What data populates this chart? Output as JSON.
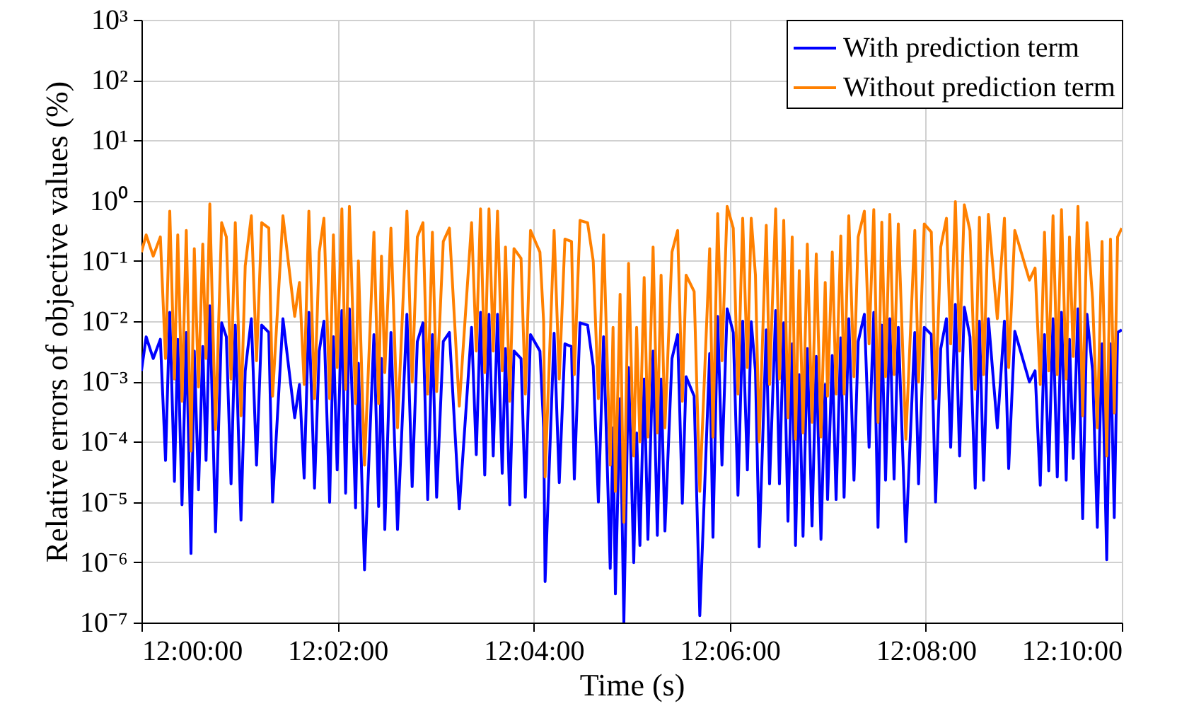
{
  "chart_data": {
    "type": "line",
    "xlabel": "Time (s)",
    "ylabel": "Relative errors of objective values (%)",
    "xlim": [
      12,
      12.166667
    ],
    "xticks": [
      {
        "value": 12,
        "label": "12:00:00"
      },
      {
        "value": 12.033333,
        "label": "12:02:00"
      },
      {
        "value": 12.066667,
        "label": "12:04:00"
      },
      {
        "value": 12.1,
        "label": "12:06:00"
      },
      {
        "value": 12.133333,
        "label": "12:08:00"
      },
      {
        "value": 12.166667,
        "label": "12:10:00"
      }
    ],
    "ylim": [
      1e-07,
      1000
    ],
    "yticks": [
      {
        "value": 1e-07,
        "label": "10⁻⁷"
      },
      {
        "value": 1e-06,
        "label": "10⁻⁶"
      },
      {
        "value": 1e-05,
        "label": "10⁻⁵"
      },
      {
        "value": 0.0001,
        "label": "10⁻⁴"
      },
      {
        "value": 0.001,
        "label": "10⁻³"
      },
      {
        "value": 0.01,
        "label": "10⁻²"
      },
      {
        "value": 0.1,
        "label": "10⁻¹"
      },
      {
        "value": 1,
        "label": "10⁰"
      },
      {
        "value": 10,
        "label": "10¹"
      },
      {
        "value": 100,
        "label": "10²"
      },
      {
        "value": 1000,
        "label": "10³"
      }
    ],
    "log": true,
    "grid": true,
    "legend": "top right",
    "x": [
      12.0,
      12.0008,
      12.002,
      12.00321,
      12.00409,
      12.00481,
      12.00561,
      12.00617,
      12.00689,
      12.00762,
      12.00842,
      12.00898,
      12.0097,
      12.01042,
      12.01098,
      12.01162,
      12.01259,
      12.01363,
      12.01443,
      12.01523,
      12.01595,
      12.01692,
      12.01764,
      12.01868,
      12.01956,
      12.02044,
      12.02165,
      12.02229,
      12.02405,
      12.02605,
      12.02686,
      12.02766,
      12.02846,
      12.02942,
      12.03022,
      12.03102,
      12.03199,
      12.03263,
      12.03327,
      12.03407,
      12.03471,
      12.03535,
      12.0364,
      12.03688,
      12.03792,
      12.03952,
      12.04032,
      12.0408,
      12.04137,
      12.04241,
      12.04353,
      12.04513,
      12.04602,
      12.0469,
      12.04786,
      12.04866,
      12.04946,
      12.05018,
      12.05131,
      12.05235,
      12.05403,
      12.05612,
      12.05692,
      12.05764,
      12.05836,
      12.05908,
      12.0598,
      12.06053,
      12.06133,
      12.06189,
      12.06261,
      12.06333,
      12.06453,
      12.06526,
      12.06614,
      12.06774,
      12.06838,
      12.06862,
      12.07015,
      12.07103,
      12.07199,
      12.07311,
      12.07359,
      12.07456,
      12.07584,
      12.0768,
      12.07768,
      12.07856,
      12.07969,
      12.08017,
      12.08057,
      12.08137,
      12.08201,
      12.08281,
      12.08369,
      12.08418,
      12.08474,
      12.08546,
      12.0861,
      12.08698,
      12.0877,
      12.08834,
      12.08899,
      12.09019,
      12.09115,
      12.09195,
      12.09259,
      12.09396,
      12.09492,
      12.0966,
      12.09716,
      12.09796,
      12.09869,
      12.09957,
      12.10061,
      12.10141,
      12.10221,
      12.10301,
      12.10366,
      12.10438,
      12.10502,
      12.10622,
      12.10678,
      12.10782,
      12.10846,
      12.10919,
      12.10991,
      12.11063,
      12.11119,
      12.11183,
      12.11247,
      12.1132,
      12.114,
      12.11472,
      12.11552,
      12.11624,
      12.11664,
      12.11744,
      12.11809,
      12.11889,
      12.11945,
      12.12025,
      12.12113,
      12.12185,
      12.1229,
      12.1237,
      12.1245,
      12.12522,
      12.12586,
      12.1265,
      12.12722,
      12.12795,
      12.12867,
      12.12995,
      12.13147,
      12.13211,
      12.13308,
      12.13428,
      12.135,
      12.13588,
      12.13685,
      12.13757,
      12.13837,
      12.13909,
      12.13989,
      12.14085,
      12.14174,
      12.14246,
      12.14318,
      12.14398,
      12.1455,
      12.14671,
      12.14743,
      12.14847,
      12.15096,
      12.15192,
      12.1528,
      12.15352,
      12.15424,
      12.15497,
      12.15569,
      12.15641,
      12.15721,
      12.15777,
      12.15841,
      12.15921,
      12.16001,
      12.16074,
      12.1617,
      12.1625,
      12.1633,
      12.1641,
      12.16474,
      12.16538,
      12.16595,
      12.166667
    ],
    "series": [
      {
        "name": "With prediction term",
        "color": "#0000ff",
        "values": [
          0.0015,
          0.0055,
          0.0024,
          0.005,
          4.9e-05,
          0.014,
          2.2e-05,
          0.005,
          9e-06,
          0.0065,
          1.4e-06,
          0.0032,
          1.6e-05,
          0.0038,
          4.9e-05,
          0.018,
          3.2e-06,
          0.0094,
          0.0055,
          2e-05,
          0.0086,
          5e-06,
          0.0015,
          0.011,
          4.1e-05,
          0.0086,
          0.0065,
          1e-05,
          0.011,
          0.00025,
          0.00089,
          2.5e-05,
          0.014,
          1.7e-05,
          0.0032,
          0.01,
          9.9e-06,
          0.0055,
          3.4e-05,
          0.015,
          1.4e-05,
          0.016,
          8e-06,
          0.002,
          7.5e-07,
          0.006,
          8.4e-06,
          0.0024,
          3.5e-06,
          0.0065,
          3.5e-06,
          0.013,
          1.8e-05,
          0.0046,
          0.0094,
          1.1e-05,
          0.006,
          1.2e-05,
          0.0046,
          0.0065,
          7.7e-06,
          0.0079,
          6.1e-05,
          0.014,
          2.8e-05,
          0.013,
          5.8e-05,
          0.013,
          3e-05,
          0.0035,
          9e-06,
          0.0032,
          0.0024,
          1.2e-05,
          0.006,
          0.0032,
          0.00017,
          4.8e-07,
          0.0063,
          2.1e-05,
          0.0042,
          0.0038,
          2.4e-05,
          0.0094,
          0.0086,
          0.0018,
          1e-05,
          0.0055,
          7.9e-07,
          0.00017,
          3e-07,
          0.00052,
          1e-07,
          0.0017,
          9.9e-07,
          0.00014,
          1.9e-06,
          0.0011,
          2.4e-06,
          0.0032,
          2.8e-06,
          0.0011,
          3.3e-06,
          0.0024,
          0.006,
          9.5e-06,
          0.0012,
          0.00057,
          1.3e-07,
          0.0029,
          2.6e-06,
          0.012,
          4.1e-05,
          0.016,
          0.0065,
          1.3e-05,
          0.01,
          3.4e-05,
          0.0098,
          0.0015,
          1.8e-06,
          0.0072,
          2e-05,
          0.015,
          2e-05,
          0.0094,
          4.8e-06,
          0.0042,
          1.9e-06,
          0.0013,
          2.7e-06,
          0.0035,
          4e-06,
          0.0026,
          2.4e-06,
          0.00089,
          1.1e-05,
          0.0027,
          1.1e-05,
          0.0053,
          1.2e-05,
          0.011,
          2.3e-05,
          0.0046,
          0.013,
          8.1e-05,
          0.014,
          3.8e-06,
          0.0086,
          2.3e-05,
          0.011,
          2.4e-05,
          0.0079,
          2.2e-06,
          0.0065,
          2e-05,
          0.0079,
          0.006,
          1e-05,
          0.0035,
          0.011,
          8.1e-05,
          0.019,
          5.8e-05,
          0.017,
          0.0055,
          1.7e-05,
          0.01,
          2.3e-05,
          0.011,
          0.00017,
          0.01,
          3.6e-05,
          0.0068,
          0.00098,
          0.0015,
          1.9e-05,
          0.006,
          3.3e-05,
          0.011,
          2.6e-05,
          0.014,
          2.3e-05,
          0.005,
          5.3e-05,
          0.016,
          5.3e-06,
          0.013,
          0.0015,
          3.8e-06,
          0.0042,
          1.1e-06,
          0.0042,
          5.5e-06,
          0.0065,
          0.0072
        ]
      },
      {
        "name": "Without prediction term",
        "color": "#ff8000",
        "values": [
          0.14,
          0.27,
          0.12,
          0.25,
          0.0024,
          0.67,
          0.0011,
          0.27,
          0.00047,
          0.32,
          7e-05,
          0.16,
          0.00081,
          0.19,
          0.0024,
          0.88,
          0.00016,
          0.43,
          0.25,
          0.0011,
          0.43,
          0.00027,
          0.083,
          0.56,
          0.0022,
          0.43,
          0.35,
          0.00057,
          0.56,
          0.012,
          0.044,
          0.00089,
          0.67,
          0.00052,
          0.14,
          0.51,
          0.00052,
          0.27,
          0.0017,
          0.73,
          0.00074,
          0.8,
          0.00043,
          0.1,
          4.1e-05,
          0.3,
          0.00043,
          0.12,
          0.0014,
          0.35,
          0.00017,
          0.67,
          0.00098,
          0.25,
          0.43,
          0.00062,
          0.3,
          0.00068,
          0.21,
          0.35,
          0.00039,
          0.43,
          0.0032,
          0.73,
          0.0014,
          0.73,
          0.0032,
          0.67,
          0.0015,
          0.17,
          0.00047,
          0.16,
          0.11,
          0.00062,
          0.32,
          0.14,
          0.0094,
          2.6e-05,
          0.32,
          0.0011,
          0.23,
          0.21,
          0.0013,
          0.47,
          0.43,
          0.1,
          0.00052,
          0.27,
          4.1e-05,
          0.0079,
          1.5e-05,
          0.028,
          4.6e-06,
          0.091,
          5.8e-05,
          0.0079,
          0.0001,
          0.053,
          0.00012,
          0.17,
          0.00014,
          0.058,
          0.00017,
          0.14,
          0.32,
          0.00047,
          0.058,
          0.031,
          1.5e-05,
          0.16,
          0.00012,
          0.61,
          0.0022,
          0.8,
          0.35,
          0.00062,
          0.51,
          0.0017,
          0.51,
          0.058,
          0.0001,
          0.39,
          0.00089,
          0.73,
          0.0011,
          0.47,
          0.00025,
          0.25,
          0.00011,
          0.069,
          0.00014,
          0.19,
          0.00021,
          0.13,
          0.00012,
          0.044,
          0.00057,
          0.14,
          0.00062,
          0.26,
          0.00062,
          0.56,
          0.0012,
          0.25,
          0.67,
          0.0042,
          0.71,
          0.00021,
          0.44,
          0.0012,
          0.59,
          0.0013,
          0.41,
          0.00011,
          0.32,
          0.00098,
          0.41,
          0.3,
          0.00052,
          0.17,
          0.51,
          0.0042,
          0.96,
          0.0032,
          0.85,
          0.32,
          0.00074,
          0.53,
          0.0013,
          0.59,
          0.011,
          0.51,
          0.0017,
          0.32,
          0.048,
          0.076,
          0.00089,
          0.3,
          0.0015,
          0.56,
          0.0013,
          0.71,
          0.0011,
          0.25,
          0.0026,
          0.8,
          0.00027,
          0.43,
          0.023,
          0.00017,
          0.21,
          5.8e-05,
          0.23,
          0.0003,
          0.25,
          0.35
        ]
      }
    ]
  }
}
